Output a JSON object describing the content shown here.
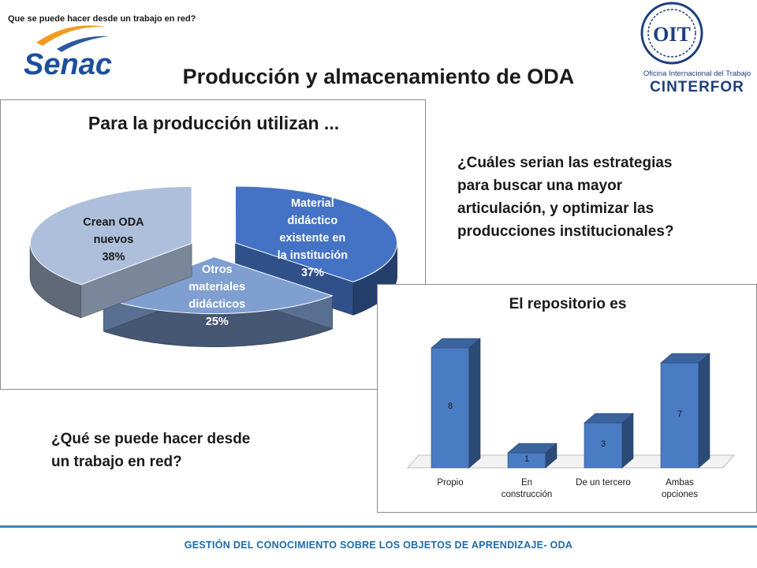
{
  "header": {
    "note": "Que se puede hacer desde un trabajo en red?",
    "logo_left_text": "Senac",
    "logo_right_line1": "Oficina Internacional del Trabajo",
    "logo_right_line2": "CINTERFOR",
    "logo_right_emblem": "OIT"
  },
  "slide_title": "Producción y almacenamiento de ODA",
  "questions": {
    "q1_lines": [
      "¿Cuáles serian las estrategias",
      "para buscar una mayor",
      "articulación, y optimizar las",
      "producciones institucionales?"
    ],
    "q2_lines": [
      "¿Qué se puede hacer desde",
      "un trabajo en red?"
    ]
  },
  "footer": {
    "text": "GESTIÓN DEL CONOCIMIENTO SOBRE LOS OBJETOS DE APRENDIZAJE- ODA"
  },
  "colors": {
    "accent_blue": "#4a7fb8",
    "footer_text": "#1f6aa8",
    "slice_material": "#4472c4",
    "slice_otros": "#7f9fd1",
    "slice_crean": "#aebfdb",
    "bar_blue": "#4a7cc4"
  },
  "chart_data": [
    {
      "type": "pie",
      "title": "Para la producción utilizan ...",
      "slices": [
        {
          "label_lines": [
            "Material",
            "didáctico",
            "existente en",
            "la institución"
          ],
          "value": 37,
          "value_label": "37%"
        },
        {
          "label_lines": [
            "Otros",
            "materiales",
            "didácticos"
          ],
          "value": 25,
          "value_label": "25%"
        },
        {
          "label_lines": [
            "Crean ODA",
            "nuevos"
          ],
          "value": 38,
          "value_label": "38%"
        }
      ]
    },
    {
      "type": "bar",
      "title": "El repositorio es",
      "categories": [
        [
          "Propio"
        ],
        [
          "En",
          "construcción"
        ],
        [
          "De un tercero"
        ],
        [
          "Ambas",
          "opciones"
        ]
      ],
      "values": [
        8,
        1,
        3,
        7
      ],
      "ylim": [
        0,
        8
      ]
    }
  ]
}
